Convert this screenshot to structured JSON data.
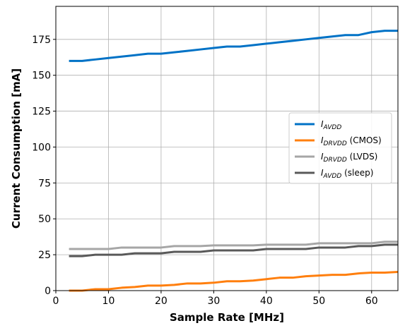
{
  "chart_data": {
    "type": "line",
    "xlabel": "Sample Rate [MHz]",
    "ylabel": "Current Consumption [mA]",
    "xlim": [
      0,
      65
    ],
    "ylim": [
      0,
      198
    ],
    "xticks": [
      0,
      10,
      20,
      30,
      40,
      50,
      60
    ],
    "yticks": [
      0,
      25,
      50,
      75,
      100,
      125,
      150,
      175
    ],
    "grid": true,
    "legend_position": "center-right",
    "x": [
      2.5,
      5,
      7.5,
      10,
      12.5,
      15,
      17.5,
      20,
      22.5,
      25,
      27.5,
      30,
      32.5,
      35,
      37.5,
      40,
      42.5,
      45,
      47.5,
      50,
      52.5,
      55,
      57.5,
      60,
      62.5,
      65
    ],
    "series": [
      {
        "name": "I_AVDD",
        "legend_main": "I",
        "legend_sub": "AVDD",
        "legend_suffix": "",
        "color": "#0072c6",
        "values": [
          160,
          160,
          161,
          162,
          163,
          164,
          165,
          165,
          166,
          167,
          168,
          169,
          170,
          170,
          171,
          172,
          173,
          174,
          175,
          176,
          177,
          178,
          178,
          180,
          181,
          181
        ]
      },
      {
        "name": "I_DRVDD (CMOS)",
        "legend_main": "I",
        "legend_sub": "DRVDD",
        "legend_suffix": " (CMOS)",
        "color": "#ff7f0e",
        "values": [
          0,
          0,
          1,
          1,
          2,
          2.5,
          3.5,
          3.5,
          4,
          5,
          5,
          5.5,
          6.5,
          6.5,
          7,
          8,
          9,
          9,
          10,
          10.5,
          11,
          11,
          12,
          12.5,
          12.5,
          13
        ]
      },
      {
        "name": "I_DRVDD (LVDS)",
        "legend_main": "I",
        "legend_sub": "DRVDD",
        "legend_suffix": " (LVDS)",
        "color": "#a6a6a6",
        "values": [
          29,
          29,
          29,
          29,
          30,
          30,
          30,
          30,
          31,
          31,
          31,
          31.5,
          31.5,
          31.5,
          31.5,
          32,
          32,
          32,
          32,
          33,
          33,
          33,
          33,
          33,
          34,
          34
        ]
      },
      {
        "name": "I_AVDD (sleep)",
        "legend_main": "I",
        "legend_sub": "AVDD",
        "legend_suffix": " (sleep)",
        "color": "#595959",
        "values": [
          24,
          24,
          25,
          25,
          25,
          26,
          26,
          26,
          27,
          27,
          27,
          28,
          28,
          28,
          28,
          29,
          29,
          29,
          29,
          30,
          30,
          30,
          31,
          31,
          32,
          32
        ]
      }
    ]
  }
}
